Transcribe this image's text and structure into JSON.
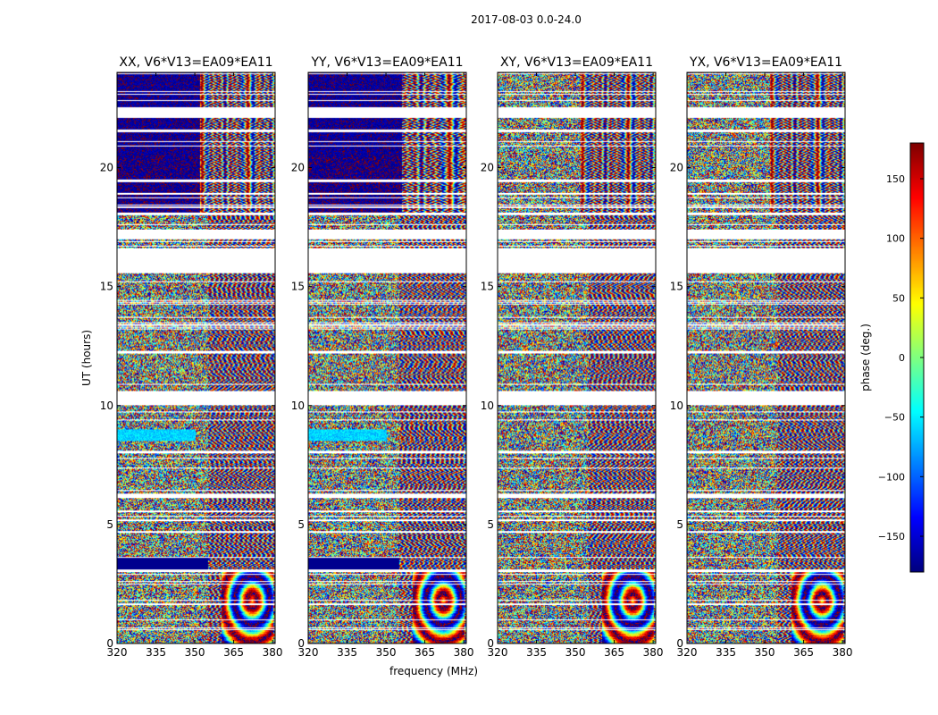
{
  "figure": {
    "suptitle": "2017-08-03 0.0-24.0"
  },
  "chart_data": [
    {
      "type": "heatmap",
      "title": "XX, V6*V13=EA09*EA11",
      "xlabel": "",
      "ylabel": "UT (hours)",
      "xlim": [
        320,
        381
      ],
      "ylim": [
        0,
        24
      ],
      "xticks": [
        320,
        335,
        350,
        365,
        380
      ],
      "yticks": [
        0,
        5,
        10,
        15,
        20
      ],
      "z_description": "phase"
    },
    {
      "type": "heatmap",
      "title": "YY, V6*V13=EA09*EA11",
      "xlabel": "frequency (MHz)",
      "ylabel": "",
      "xlim": [
        320,
        381
      ],
      "ylim": [
        0,
        24
      ],
      "xticks": [
        320,
        335,
        350,
        365,
        380
      ],
      "yticks": [
        0,
        5,
        10,
        15,
        20
      ]
    },
    {
      "type": "heatmap",
      "title": "XY, V6*V13=EA09*EA11",
      "xlabel": "",
      "ylabel": "",
      "xlim": [
        320,
        381
      ],
      "ylim": [
        0,
        24
      ],
      "xticks": [
        320,
        335,
        350,
        365,
        380
      ],
      "yticks": [
        0,
        5,
        10,
        15,
        20
      ]
    },
    {
      "type": "heatmap",
      "title": "YX, V6*V13=EA09*EA11",
      "xlabel": "",
      "ylabel": "",
      "xlim": [
        320,
        381
      ],
      "ylim": [
        0,
        24
      ],
      "xticks": [
        320,
        335,
        350,
        365,
        380
      ],
      "yticks": [
        0,
        5,
        10,
        15,
        20
      ]
    }
  ],
  "colorbar": {
    "label": "phase (deg.)",
    "range": [
      -180,
      180
    ],
    "ticks": [
      -150,
      -100,
      -50,
      0,
      50,
      100,
      150
    ],
    "tick_labels": [
      "−150",
      "−100",
      "−50",
      "0",
      "50",
      "100",
      "150"
    ],
    "colormap": "jet"
  },
  "flagged_ut_ranges": [
    [
      17.0,
      17.4
    ],
    [
      15.6,
      16.6
    ],
    [
      10.0,
      10.6
    ],
    [
      6.1,
      6.3
    ],
    [
      3.0,
      3.1
    ],
    [
      22.1,
      22.5
    ],
    [
      21.5,
      21.6
    ],
    [
      19.4,
      19.5
    ],
    [
      18.0,
      18.1
    ],
    [
      12.2,
      12.3
    ],
    [
      8.0,
      8.1
    ],
    [
      5.5,
      5.6
    ],
    [
      1.6,
      1.7
    ]
  ]
}
